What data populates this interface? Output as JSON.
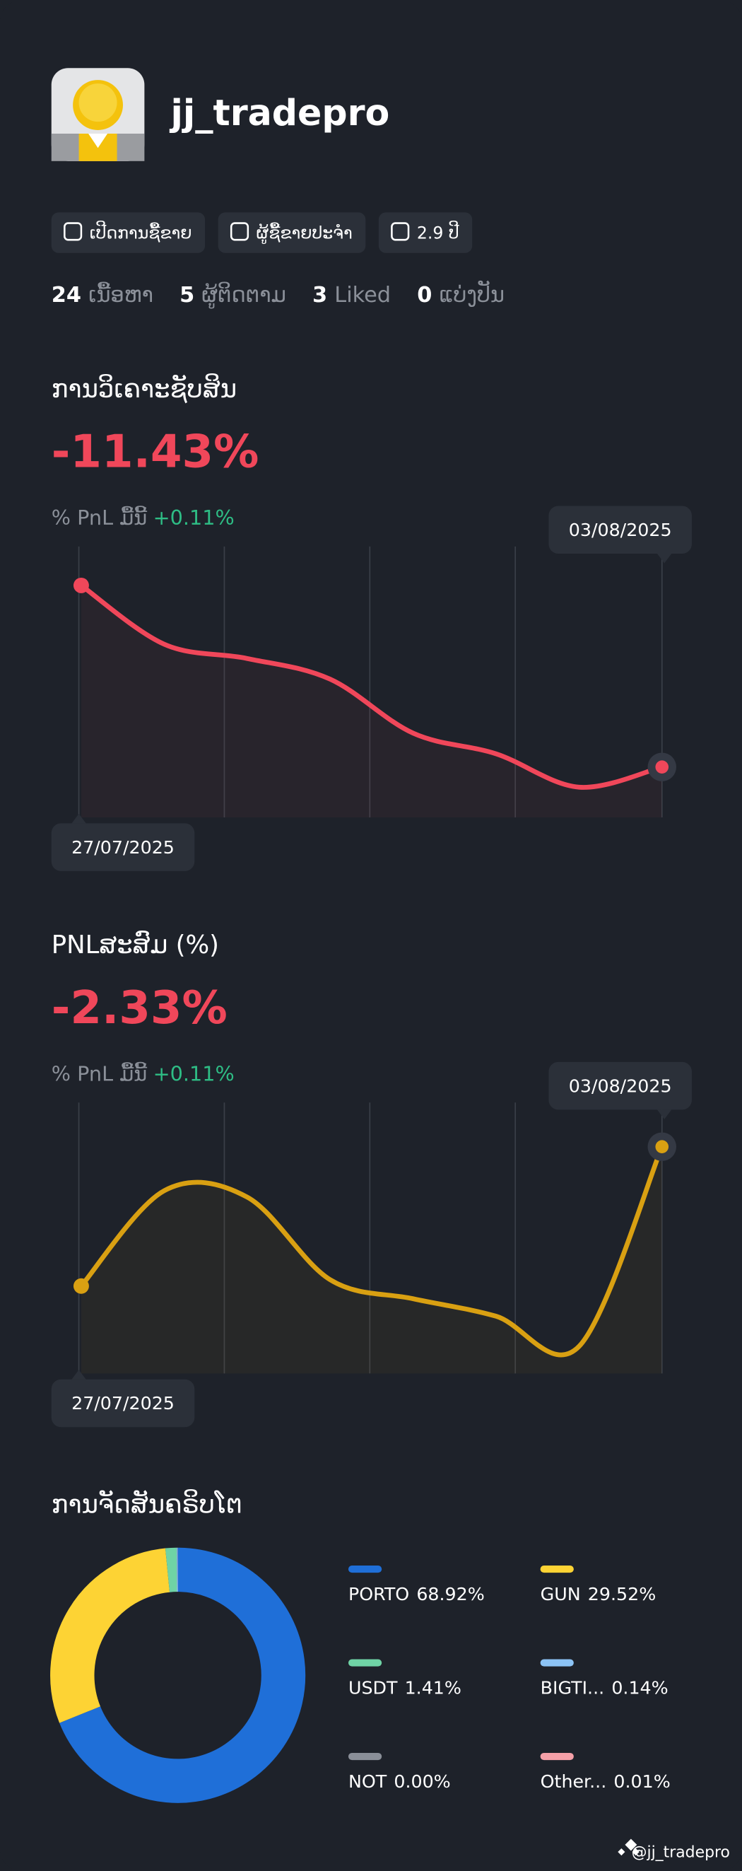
{
  "profile": {
    "username": "jj_tradepro",
    "badges": [
      "ເປີດການຊື້ຂາຍ",
      "ຜູ້ຊື້ຂາຍປະຈຳ",
      "2.9 ປີ"
    ],
    "stats": [
      {
        "value": 24,
        "label": "ເນື້ອຫາ"
      },
      {
        "value": 5,
        "label": "ຜູ້ຕິດຕາມ"
      },
      {
        "value": 3,
        "label": "Liked"
      },
      {
        "value": 0,
        "label": "ແບ່ງປັນ"
      }
    ]
  },
  "chart_data": [
    {
      "type": "line",
      "title": "ການວິເຄາະຊັບສິນ",
      "headline": "-11.43%",
      "subtitle": "% PnL ມື້ນີ້",
      "change": "+0.11%",
      "x": [
        "27/07/2025",
        null,
        null,
        null,
        null,
        null,
        null,
        "03/08/2025"
      ],
      "series": [
        {
          "color": "#f0475a",
          "values": [
            0,
            -3.7,
            -4.6,
            -5.9,
            -9.3,
            -10.6,
            -12.7,
            -11.43
          ]
        }
      ],
      "ylim": [
        -14,
        2
      ]
    },
    {
      "type": "line",
      "title": "PNLສະສົມ (%)",
      "headline": "-2.33%",
      "subtitle": "% PnL ມື້ນີ້",
      "change": "+0.11%",
      "x": [
        "27/07/2025",
        null,
        null,
        null,
        null,
        null,
        null,
        "03/08/2025"
      ],
      "series": [
        {
          "color": "#d9a012",
          "values": [
            -11.1,
            -5.1,
            -5.5,
            -10.7,
            -11.9,
            -13.0,
            -14.9,
            -2.33
          ]
        }
      ],
      "ylim": [
        -16,
        0
      ]
    },
    {
      "type": "pie",
      "title": "ການຈັດສັນຄຣິບໂຕ",
      "categories": [
        "PORTO",
        "GUN",
        "USDT",
        "BIGTI...",
        "NOT",
        "Other..."
      ],
      "values": [
        68.92,
        29.52,
        1.41,
        0.14,
        0.0,
        0.01
      ],
      "value_labels": [
        "68.92%",
        "29.52%",
        "1.41%",
        "0.14%",
        "0.00%",
        "0.01%"
      ],
      "colors": [
        "#1f6fd8",
        "#fdd334",
        "#6fd3a5",
        "#8cc3f5",
        "#8a8f98",
        "#f5a0a8"
      ]
    }
  ],
  "footer": "@jj_tradepro"
}
